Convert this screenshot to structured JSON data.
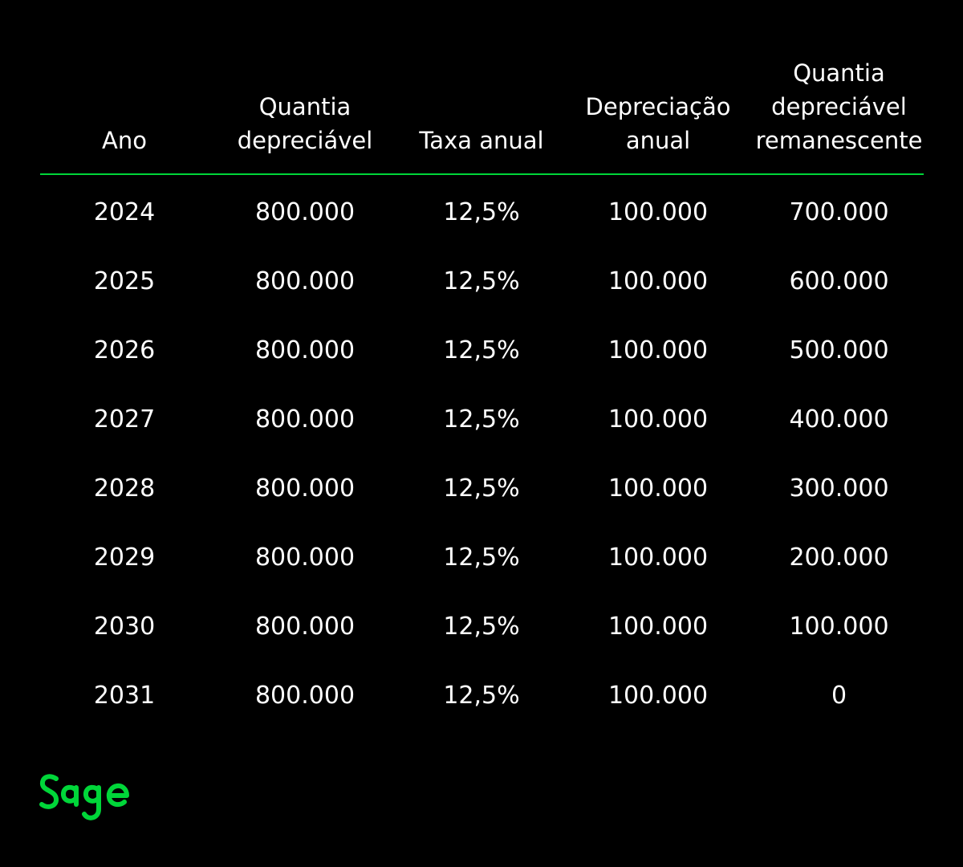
{
  "table": {
    "headers": [
      "Ano",
      "Quantia\ndepreciável",
      "Taxa anual",
      "Depreciação\nanual",
      "Quantia\ndepreciável\nremanescente"
    ],
    "rows": [
      [
        "2024",
        "800.000",
        "12,5%",
        "100.000",
        "700.000"
      ],
      [
        "2025",
        "800.000",
        "12,5%",
        "100.000",
        "600.000"
      ],
      [
        "2026",
        "800.000",
        "12,5%",
        "100.000",
        "500.000"
      ],
      [
        "2027",
        "800.000",
        "12,5%",
        "100.000",
        "400.000"
      ],
      [
        "2028",
        "800.000",
        "12,5%",
        "100.000",
        "300.000"
      ],
      [
        "2029",
        "800.000",
        "12,5%",
        "100.000",
        "200.000"
      ],
      [
        "2030",
        "800.000",
        "12,5%",
        "100.000",
        "100.000"
      ],
      [
        "2031",
        "800.000",
        "12,5%",
        "100.000",
        "0"
      ]
    ]
  },
  "logo": {
    "text": "Sage",
    "icon": "sage-logo-icon"
  },
  "colors": {
    "background": "#000000",
    "text": "#ffffff",
    "accent": "#00d639"
  }
}
